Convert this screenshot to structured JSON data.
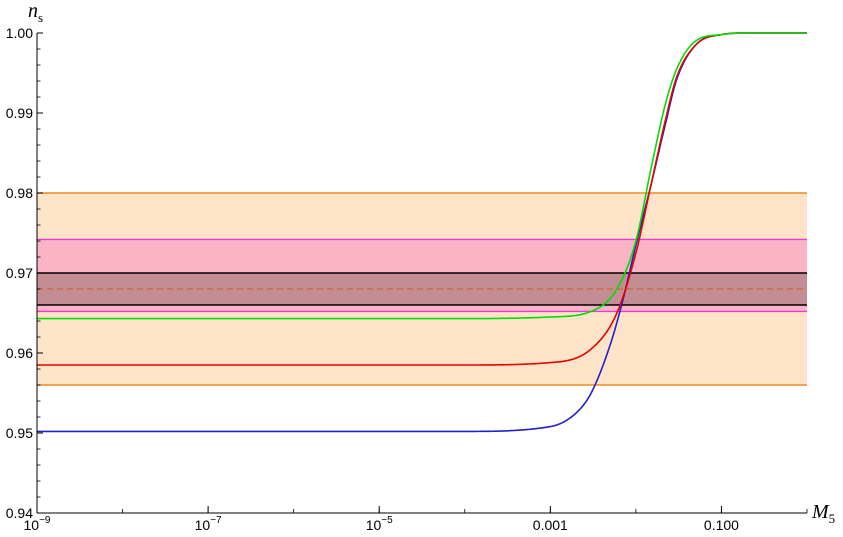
{
  "chart_data": {
    "type": "line",
    "xlabel": "M",
    "xlabel_sub": "5",
    "ylabel": "n",
    "ylabel_sub": "s",
    "x_scale": "log",
    "xlim": [
      1e-09,
      1
    ],
    "ylim": [
      0.94,
      1.0
    ],
    "x_ticks": [
      {
        "value": 1e-09,
        "base": "10",
        "exp": "−9",
        "label": ""
      },
      {
        "value": 1e-07,
        "base": "10",
        "exp": "−7",
        "label": ""
      },
      {
        "value": 1e-05,
        "base": "10",
        "exp": "−5",
        "label": ""
      },
      {
        "value": 0.001,
        "base": "",
        "exp": "",
        "label": "0.001"
      },
      {
        "value": 0.1,
        "base": "",
        "exp": "",
        "label": "0.100"
      }
    ],
    "y_ticks": [
      {
        "value": 0.94,
        "label": "0.94"
      },
      {
        "value": 0.95,
        "label": "0.95"
      },
      {
        "value": 0.96,
        "label": "0.96"
      },
      {
        "value": 0.97,
        "label": "0.97"
      },
      {
        "value": 0.98,
        "label": "0.98"
      },
      {
        "value": 0.99,
        "label": "0.99"
      },
      {
        "value": 1.0,
        "label": "1.00"
      }
    ],
    "bands": [
      {
        "y0": 0.956,
        "y1": 0.98,
        "fill": "#fde4c8",
        "edge": "#f08a1e"
      },
      {
        "y0": 0.9652,
        "y1": 0.9742,
        "fill": "#f9b4c6",
        "edge": "#e83ccf"
      },
      {
        "y0": 0.966,
        "y1": 0.97,
        "fill": "#c48d94",
        "edge": "#000000"
      }
    ],
    "reference_line": {
      "y": 0.968,
      "color": "#d2603a",
      "dash": "6,4"
    },
    "series": [
      {
        "color": "#00dd00",
        "x": [
          1e-09,
          0.0001,
          0.001,
          0.003,
          0.006,
          0.01,
          0.015,
          0.022,
          0.03,
          0.05,
          0.1,
          0.2,
          1.0
        ],
        "y": [
          0.9643,
          0.9643,
          0.9645,
          0.9652,
          0.968,
          0.974,
          0.983,
          0.991,
          0.9955,
          0.999,
          0.9998,
          1.0,
          1.0
        ]
      },
      {
        "color": "#e60000",
        "x": [
          1e-09,
          0.0001,
          0.001,
          0.003,
          0.006,
          0.01,
          0.015,
          0.022,
          0.03,
          0.05,
          0.1,
          0.2,
          1.0
        ],
        "y": [
          0.9585,
          0.9585,
          0.9588,
          0.9605,
          0.965,
          0.9725,
          0.981,
          0.989,
          0.9945,
          0.9985,
          0.9998,
          1.0,
          1.0
        ]
      },
      {
        "color": "#2020cc",
        "x": [
          1e-09,
          0.0001,
          0.001,
          0.002,
          0.003,
          0.005,
          0.007,
          0.01,
          0.015,
          0.022,
          0.03,
          0.05,
          0.1,
          0.2,
          1.0
        ],
        "y": [
          0.9502,
          0.9502,
          0.9508,
          0.9525,
          0.955,
          0.961,
          0.9665,
          0.9735,
          0.981,
          0.9885,
          0.9942,
          0.9985,
          0.9998,
          1.0,
          1.0
        ]
      }
    ]
  }
}
